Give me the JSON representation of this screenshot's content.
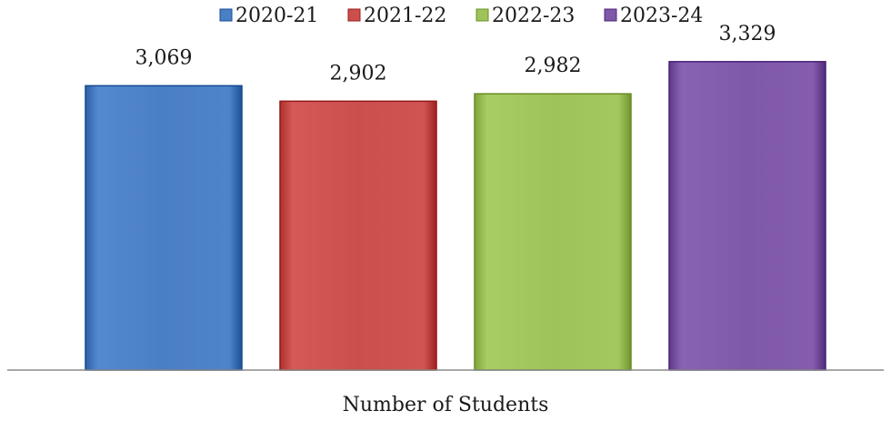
{
  "chart_data": {
    "type": "bar",
    "categories": [
      "Number of Students"
    ],
    "xlabel": "Number of Students",
    "ylabel": "",
    "title": "",
    "ylim": [
      0,
      3700
    ],
    "legend_position": "top",
    "grid": false,
    "series": [
      {
        "name": "2020-21",
        "values": [
          3069
        ],
        "label": "3,069",
        "color": "#4a7fc6"
      },
      {
        "name": "2021-22",
        "values": [
          2902
        ],
        "label": "2,902",
        "color": "#cb4f4d"
      },
      {
        "name": "2022-23",
        "values": [
          2982
        ],
        "label": "2,982",
        "color": "#9ec35a"
      },
      {
        "name": "2023-24",
        "values": [
          3329
        ],
        "label": "3,329",
        "color": "#7f58aa"
      }
    ]
  }
}
